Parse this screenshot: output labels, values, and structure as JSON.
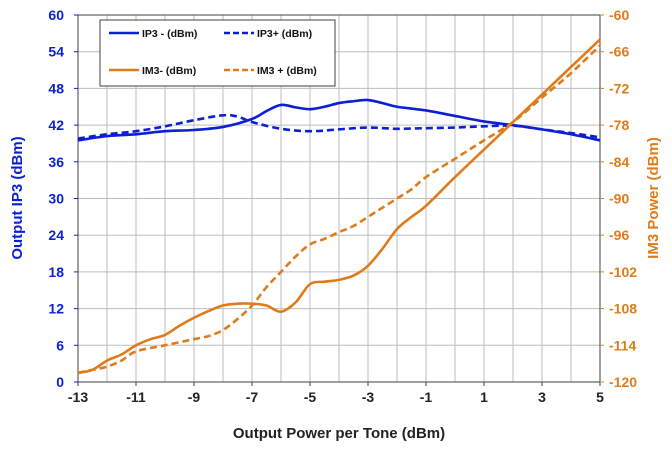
{
  "chart_data": {
    "type": "line",
    "xlabel": "Output Power per Tone (dBm)",
    "ylabel": "Output IP3 (dBm)",
    "y2label": "IM3 Power (dBm)",
    "xlim": [
      -13,
      5
    ],
    "ylim": [
      0,
      60
    ],
    "y2lim": [
      -120,
      -60
    ],
    "x_ticks": [
      -13,
      -11,
      -9,
      -7,
      -5,
      -3,
      -1,
      1,
      3,
      5
    ],
    "y_ticks": [
      0,
      6,
      12,
      18,
      24,
      30,
      36,
      42,
      48,
      54,
      60
    ],
    "y2_ticks": [
      -120,
      -114,
      -108,
      -102,
      -96,
      -90,
      -84,
      -78,
      -72,
      -66,
      -60
    ],
    "grid": true,
    "legend_position": "top-left",
    "colors": {
      "blue": "#0b1fd6",
      "orange": "#e07b1a",
      "grid": "#bdbdbd"
    },
    "series": [
      {
        "name": "IP3 - (dBm)",
        "axis": "left",
        "style": "solid",
        "color": "#0b1fd6",
        "x": [
          -13,
          -12,
          -11,
          -10,
          -9,
          -8,
          -7,
          -6.5,
          -6,
          -5.5,
          -5,
          -4.5,
          -4,
          -3.5,
          -3,
          -2.5,
          -2,
          -1,
          0,
          1,
          2,
          3,
          4,
          5
        ],
        "y": [
          39.5,
          40.2,
          40.5,
          41.0,
          41.2,
          41.7,
          43.0,
          44.3,
          45.3,
          44.9,
          44.6,
          45.0,
          45.6,
          45.9,
          46.1,
          45.6,
          45.0,
          44.4,
          43.5,
          42.6,
          42.0,
          41.3,
          40.5,
          39.5
        ]
      },
      {
        "name": "IP3+ (dBm)",
        "axis": "left",
        "style": "dashed",
        "color": "#0b1fd6",
        "x": [
          -13,
          -12,
          -11,
          -10,
          -9,
          -8,
          -7.5,
          -7,
          -6,
          -5,
          -4,
          -3,
          -2,
          -1,
          0,
          1,
          2,
          3,
          4,
          5
        ],
        "y": [
          39.8,
          40.5,
          41.0,
          41.8,
          42.8,
          43.6,
          43.4,
          42.5,
          41.4,
          41.0,
          41.3,
          41.6,
          41.4,
          41.5,
          41.6,
          41.8,
          41.9,
          41.3,
          40.7,
          40.0
        ]
      },
      {
        "name": "IM3- (dBm)",
        "axis": "right",
        "style": "solid",
        "color": "#e07b1a",
        "x": [
          -13,
          -12.5,
          -12,
          -11.5,
          -11,
          -10.5,
          -10,
          -9.5,
          -9,
          -8.5,
          -8,
          -7.5,
          -7,
          -6.5,
          -6,
          -5.5,
          -5,
          -4.5,
          -4,
          -3.5,
          -3,
          -2.5,
          -2,
          -1.5,
          -1,
          0,
          1,
          2,
          3,
          4,
          5
        ],
        "y": [
          -118.5,
          -118,
          -116.5,
          -115.5,
          -114,
          -113,
          -112.3,
          -110.8,
          -109.5,
          -108.4,
          -107.5,
          -107.2,
          -107.2,
          -107.5,
          -108.5,
          -107,
          -104,
          -103.6,
          -103.3,
          -102.6,
          -101,
          -98.2,
          -95,
          -93,
          -91.2,
          -86.5,
          -82,
          -77.5,
          -73,
          -68.5,
          -64
        ]
      },
      {
        "name": "IM3 + (dBm)",
        "axis": "right",
        "style": "dashed",
        "color": "#e07b1a",
        "x": [
          -13,
          -12.5,
          -12,
          -11.5,
          -11,
          -10,
          -9,
          -8.5,
          -8,
          -7.5,
          -7,
          -6.5,
          -6,
          -5.5,
          -5,
          -4.5,
          -4,
          -3.5,
          -3,
          -2.5,
          -2,
          -1.5,
          -1,
          0,
          1,
          2,
          3,
          4,
          5
        ],
        "y": [
          -118.5,
          -118,
          -117.5,
          -116.5,
          -115,
          -114,
          -113,
          -112.5,
          -111.5,
          -109.7,
          -107.5,
          -104.5,
          -102,
          -99.5,
          -97.5,
          -96.6,
          -95.5,
          -94.5,
          -93,
          -91.5,
          -90,
          -88.5,
          -86.5,
          -83.5,
          -80.5,
          -77.5,
          -73.5,
          -69.5,
          -65
        ]
      }
    ]
  }
}
